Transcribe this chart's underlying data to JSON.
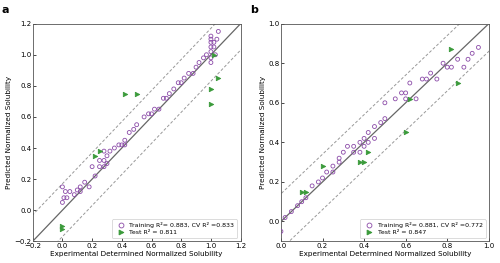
{
  "panel_a": {
    "title": "a",
    "train_x": [
      0.0,
      0.01,
      0.02,
      0.03,
      0.0,
      0.05,
      0.08,
      0.1,
      0.12,
      0.12,
      0.15,
      0.18,
      0.2,
      0.22,
      0.25,
      0.25,
      0.28,
      0.28,
      0.28,
      0.3,
      0.3,
      0.32,
      0.35,
      0.38,
      0.4,
      0.42,
      0.42,
      0.45,
      0.48,
      0.5,
      0.55,
      0.58,
      0.6,
      0.62,
      0.65,
      0.68,
      0.7,
      0.72,
      0.75,
      0.78,
      0.8,
      0.82,
      0.85,
      0.88,
      0.9,
      0.92,
      0.95,
      0.97,
      1.0,
      1.0,
      1.0,
      1.0,
      1.0,
      1.0,
      1.0,
      1.02,
      1.02,
      1.03,
      1.04,
      1.05
    ],
    "train_y": [
      0.05,
      0.08,
      0.12,
      0.08,
      0.15,
      0.12,
      0.1,
      0.13,
      0.15,
      0.12,
      0.18,
      0.15,
      0.28,
      0.22,
      0.28,
      0.32,
      0.28,
      0.32,
      0.38,
      0.3,
      0.35,
      0.38,
      0.4,
      0.42,
      0.42,
      0.42,
      0.45,
      0.5,
      0.52,
      0.55,
      0.6,
      0.62,
      0.62,
      0.65,
      0.65,
      0.72,
      0.72,
      0.75,
      0.78,
      0.82,
      0.82,
      0.85,
      0.88,
      0.88,
      0.92,
      0.95,
      0.98,
      1.0,
      1.05,
      1.1,
      1.08,
      1.02,
      0.98,
      1.12,
      0.95,
      1.05,
      1.08,
      1.0,
      1.1,
      1.15
    ],
    "test_x": [
      0.0,
      0.0,
      0.22,
      0.25,
      0.42,
      0.5,
      1.0,
      1.0,
      1.02,
      1.05
    ],
    "test_y": [
      -0.12,
      -0.1,
      0.35,
      0.38,
      0.75,
      0.75,
      0.68,
      0.78,
      1.0,
      0.85
    ],
    "xlim": [
      -0.2,
      1.2
    ],
    "ylim": [
      -0.2,
      1.2
    ],
    "xticks": [
      -0.2,
      0.0,
      0.2,
      0.4,
      0.6,
      0.8,
      1.0,
      1.2
    ],
    "yticks": [
      -0.2,
      0.0,
      0.2,
      0.4,
      0.6,
      0.8,
      1.0,
      1.2
    ],
    "xlabel": "Experimental Determined Normalized Solubility",
    "ylabel": "Predicted Normalized Solubility",
    "legend_train": "Training R²= 0.883, CV R² =0.833",
    "legend_test": "Test R² = 0.811",
    "rmsd": 0.17
  },
  "panel_b": {
    "title": "b",
    "train_x": [
      0.0,
      0.02,
      0.05,
      0.08,
      0.1,
      0.12,
      0.15,
      0.18,
      0.2,
      0.22,
      0.25,
      0.25,
      0.28,
      0.28,
      0.3,
      0.32,
      0.35,
      0.35,
      0.38,
      0.38,
      0.4,
      0.4,
      0.42,
      0.42,
      0.45,
      0.45,
      0.48,
      0.5,
      0.5,
      0.55,
      0.58,
      0.6,
      0.6,
      0.62,
      0.65,
      0.68,
      0.7,
      0.72,
      0.75,
      0.78,
      0.8,
      0.82,
      0.85,
      0.88,
      0.9,
      0.92,
      0.95
    ],
    "train_y": [
      -0.05,
      0.02,
      0.05,
      0.08,
      0.1,
      0.12,
      0.18,
      0.2,
      0.22,
      0.25,
      0.25,
      0.28,
      0.3,
      0.32,
      0.35,
      0.38,
      0.35,
      0.38,
      0.35,
      0.4,
      0.38,
      0.42,
      0.4,
      0.45,
      0.42,
      0.48,
      0.5,
      0.52,
      0.6,
      0.62,
      0.65,
      0.62,
      0.65,
      0.7,
      0.62,
      0.72,
      0.72,
      0.75,
      0.72,
      0.8,
      0.78,
      0.78,
      0.82,
      0.78,
      0.82,
      0.85,
      0.88
    ],
    "test_x": [
      0.1,
      0.12,
      0.2,
      0.38,
      0.4,
      0.42,
      0.6,
      0.62,
      0.82,
      0.85
    ],
    "test_y": [
      0.15,
      0.15,
      0.28,
      0.3,
      0.3,
      0.35,
      0.45,
      0.62,
      0.87,
      0.7
    ],
    "xlim": [
      0.0,
      1.0
    ],
    "ylim": [
      -0.1,
      1.0
    ],
    "xticks": [
      0.0,
      0.2,
      0.4,
      0.6,
      0.8,
      1.0
    ],
    "yticks": [
      0.0,
      0.2,
      0.4,
      0.6,
      0.8,
      1.0
    ],
    "xlabel": "Experimental Determined Normalized Solubility",
    "ylabel": "Predicted Normalized Solubility",
    "legend_train": "Training R²= 0.881, CV R² =0.772",
    "legend_test": "Test R² = 0.847",
    "rmsd": 0.14
  },
  "train_color": "#8B4BA8",
  "test_color": "#3A9A3A",
  "identity_color": "#666666",
  "rmsd_color": "#999999",
  "bg_color": "#ffffff",
  "fontsize_label": 5.2,
  "fontsize_tick": 5.0,
  "fontsize_legend": 4.5
}
